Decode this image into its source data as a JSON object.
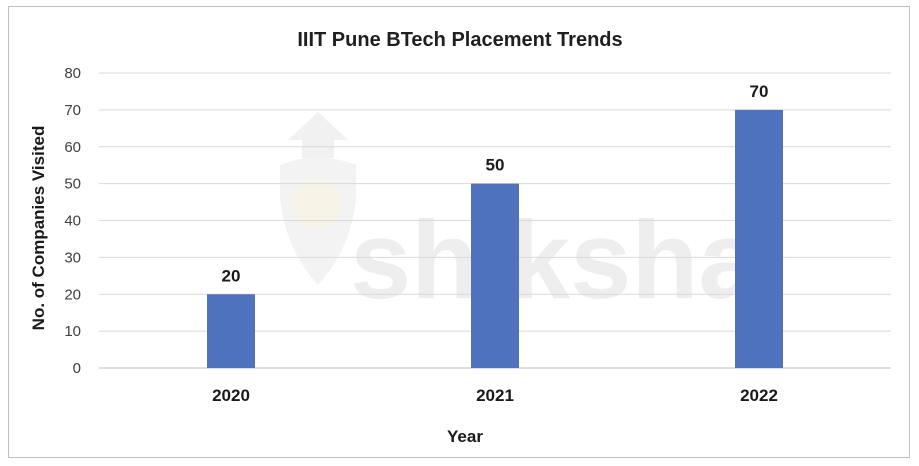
{
  "watermark": {
    "text": "shiksha"
  },
  "chart_data": {
    "type": "bar",
    "title": "IIIT Pune BTech Placement Trends",
    "xlabel": "Year",
    "ylabel": "No. of Companies Visited",
    "categories": [
      "2020",
      "2021",
      "2022"
    ],
    "values": [
      20,
      50,
      70
    ],
    "ylim": [
      0,
      80
    ],
    "yticks": [
      0,
      10,
      20,
      30,
      40,
      50,
      60,
      70,
      80
    ],
    "grid": true,
    "data_labels": true,
    "bar_color": "#4f72be",
    "legend": "none"
  }
}
